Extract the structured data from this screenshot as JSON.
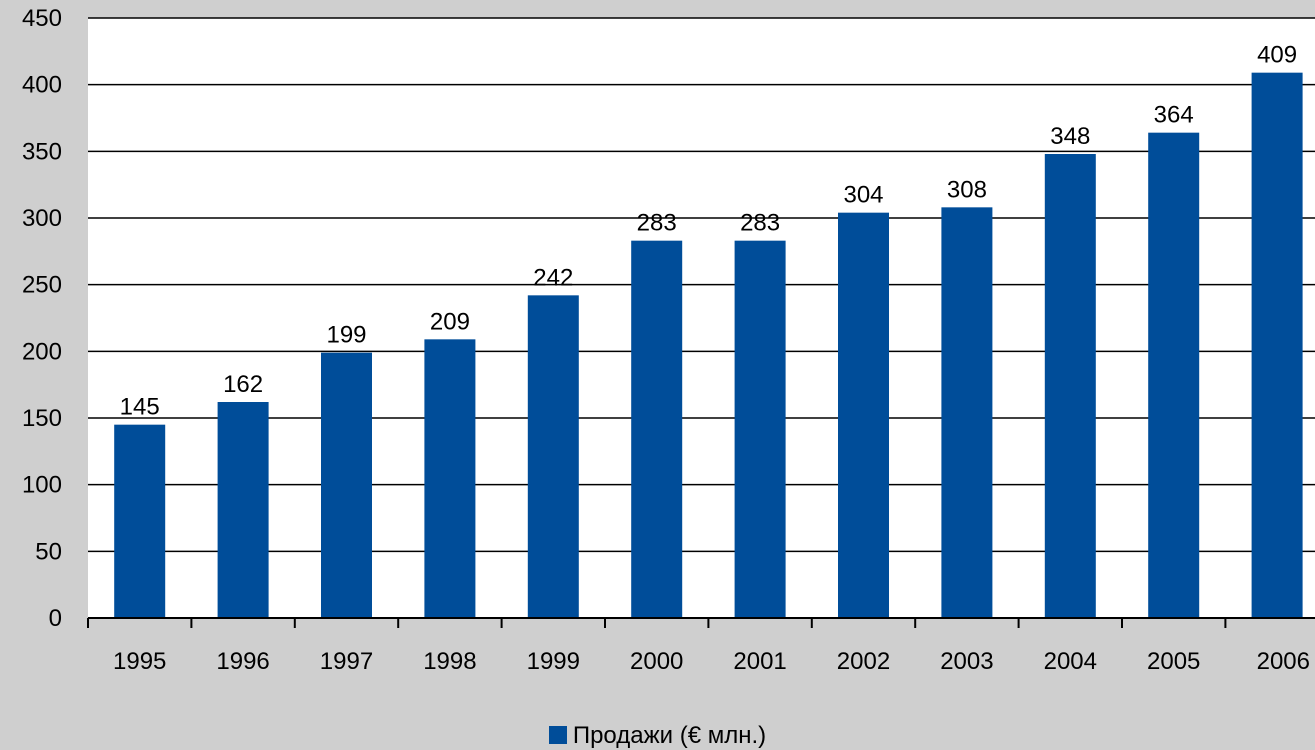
{
  "colors": {
    "background": "#cfcfcf",
    "plot_background": "#ffffff",
    "bar": "#004d99",
    "grid": "#000000"
  },
  "chart_data": {
    "type": "bar",
    "categories": [
      "1995",
      "1996",
      "1997",
      "1998",
      "1999",
      "2000",
      "2001",
      "2002",
      "2003",
      "2004",
      "2005",
      "2006"
    ],
    "series": [
      {
        "name": "Продажи (€ млн.)",
        "values": [
          145,
          162,
          199,
          209,
          242,
          283,
          283,
          304,
          308,
          348,
          364,
          409
        ]
      }
    ],
    "title": "",
    "xlabel": "",
    "ylabel": "",
    "ylim": [
      0,
      450
    ],
    "yticks": [
      0,
      50,
      100,
      150,
      200,
      250,
      300,
      350,
      400,
      450
    ],
    "grid": true,
    "legend": "bottom-center",
    "data_labels": true
  }
}
